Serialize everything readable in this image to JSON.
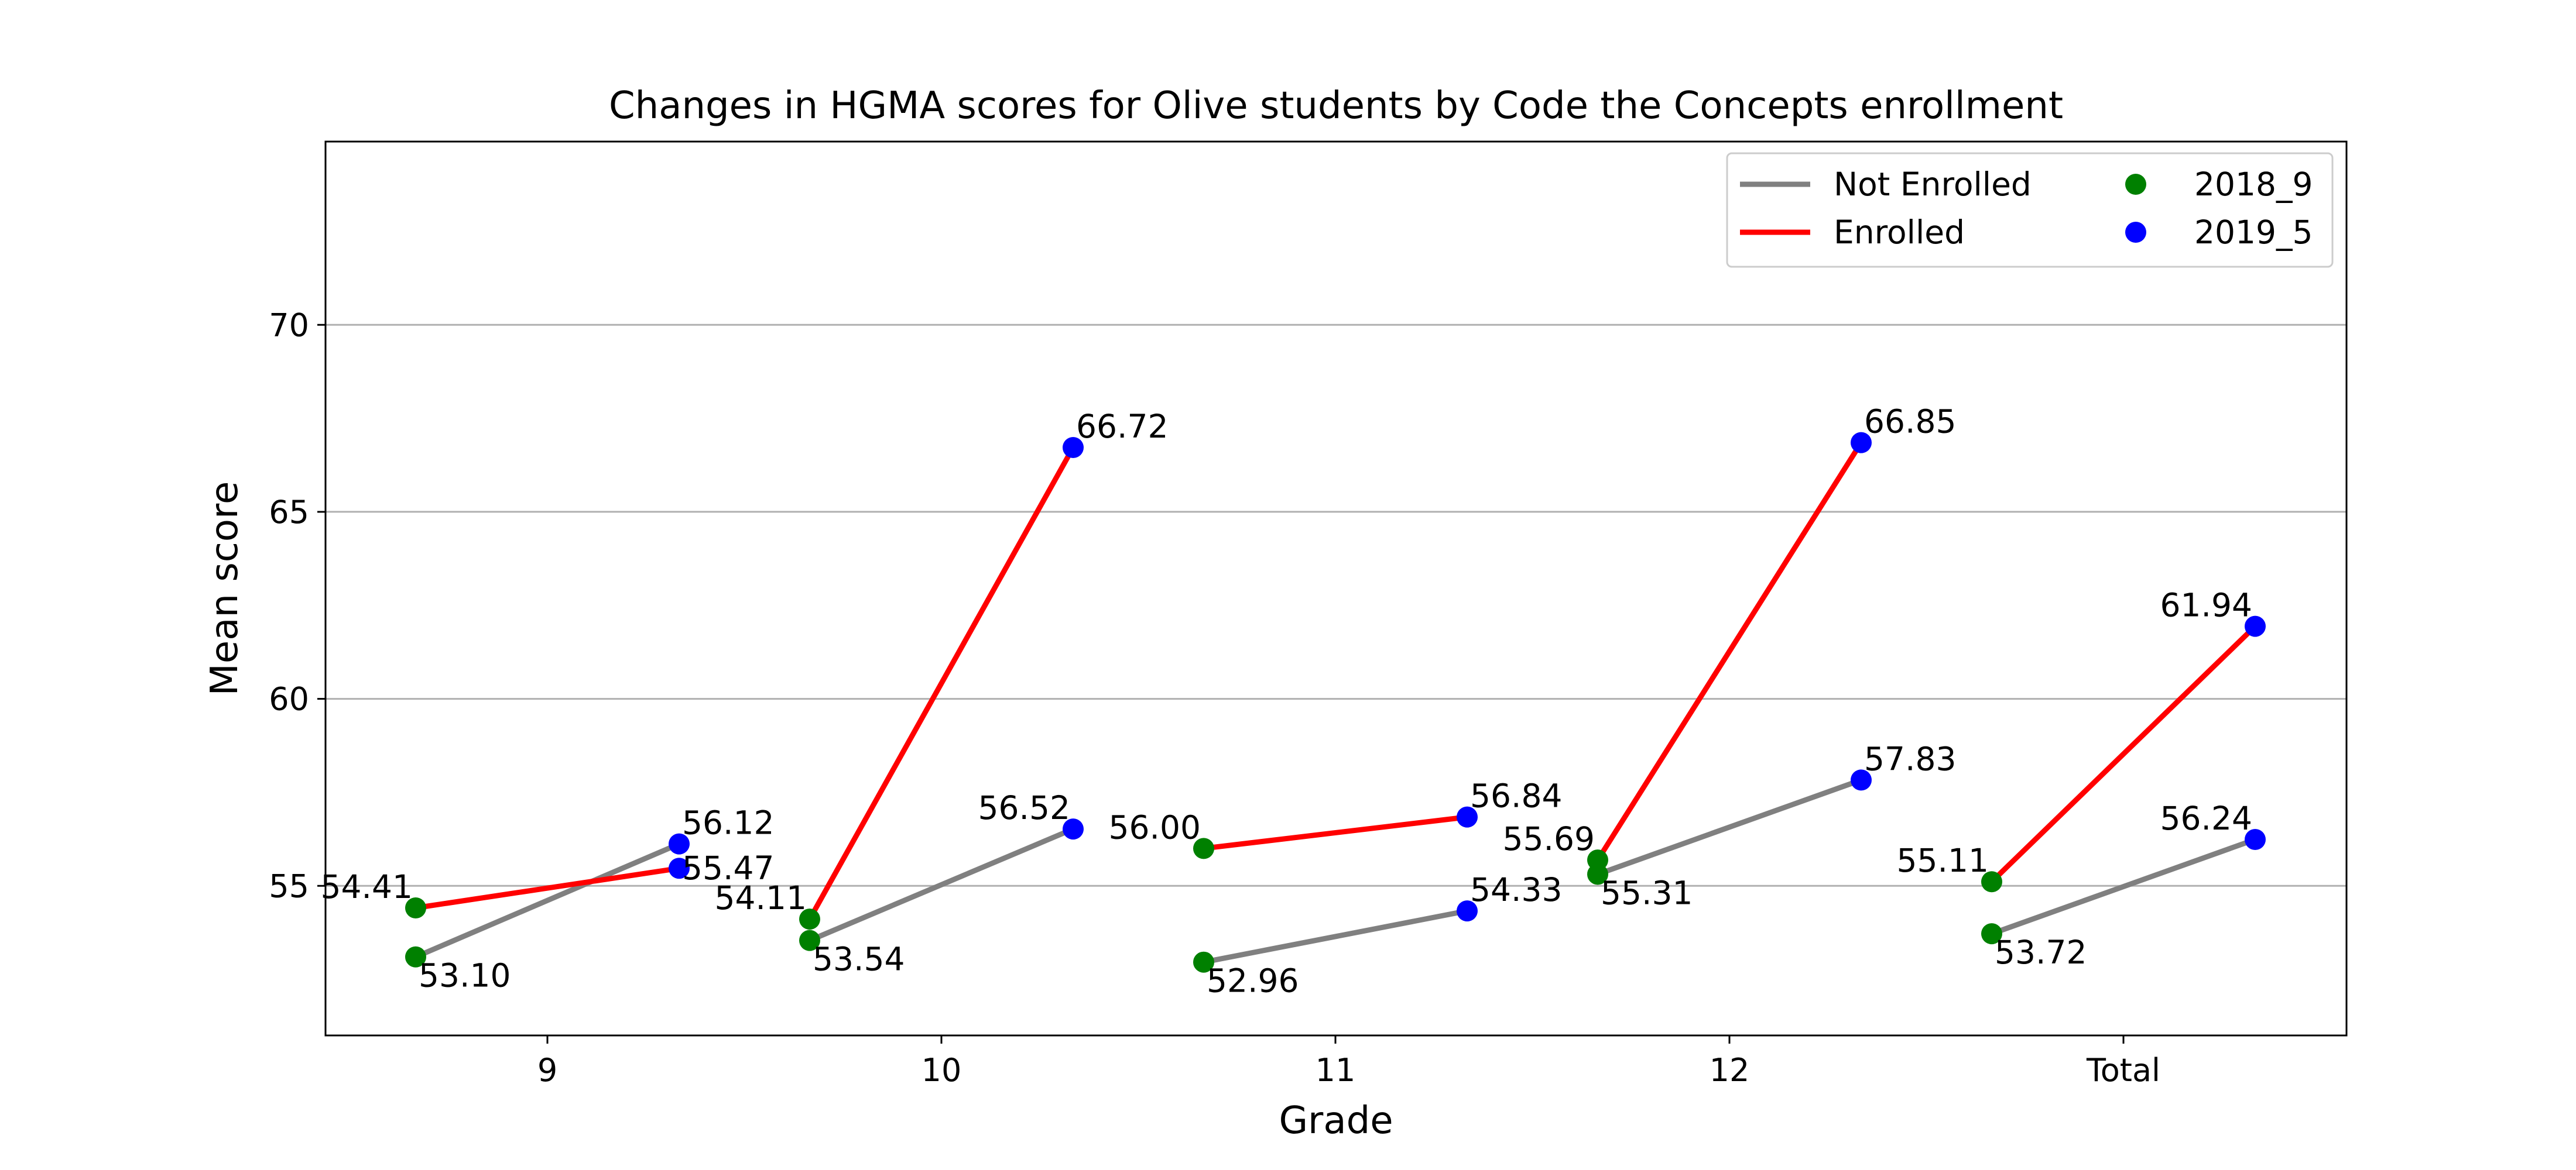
{
  "chart_data": {
    "type": "line",
    "title": "Changes in HGMA scores for Olive students by Code the Concepts enrollment",
    "xlabel": "Grade",
    "ylabel": "Mean score",
    "categories": [
      "9",
      "10",
      "11",
      "12",
      "Total"
    ],
    "ylim": [
      51.0,
      74.9
    ],
    "yticks": [
      55,
      60,
      65,
      70
    ],
    "grid": "horizontal",
    "legend_placement": "top-right",
    "legend": {
      "line_entries": [
        {
          "name": "Not Enrolled",
          "color": "#808080"
        },
        {
          "name": "Enrolled",
          "color": "#ff0000"
        }
      ],
      "marker_entries": [
        {
          "name": "2018_9",
          "color": "#008000"
        },
        {
          "name": "2019_5",
          "color": "#0000ff"
        }
      ]
    },
    "series": [
      {
        "name": "Not Enrolled",
        "color": "#808080",
        "start": [
          53.1,
          53.54,
          52.96,
          55.31,
          53.72
        ],
        "end": [
          56.12,
          56.52,
          54.33,
          57.83,
          56.24
        ],
        "start_labels": [
          "53.10",
          "53.54",
          "52.96",
          "55.31",
          "53.72"
        ],
        "end_labels": [
          "56.12",
          "56.52",
          "54.33",
          "57.83",
          "56.24"
        ]
      },
      {
        "name": "Enrolled",
        "color": "#ff0000",
        "start": [
          54.41,
          54.11,
          56.0,
          55.69,
          55.11
        ],
        "end": [
          55.47,
          66.72,
          56.84,
          66.85,
          61.94
        ],
        "start_labels": [
          "54.41",
          "54.11",
          "56.00",
          "55.69",
          "55.11"
        ],
        "end_labels": [
          "55.47",
          "66.72",
          "56.84",
          "66.85",
          "61.94"
        ]
      }
    ],
    "point_colors": {
      "start": "#008000",
      "end": "#0000ff"
    }
  }
}
